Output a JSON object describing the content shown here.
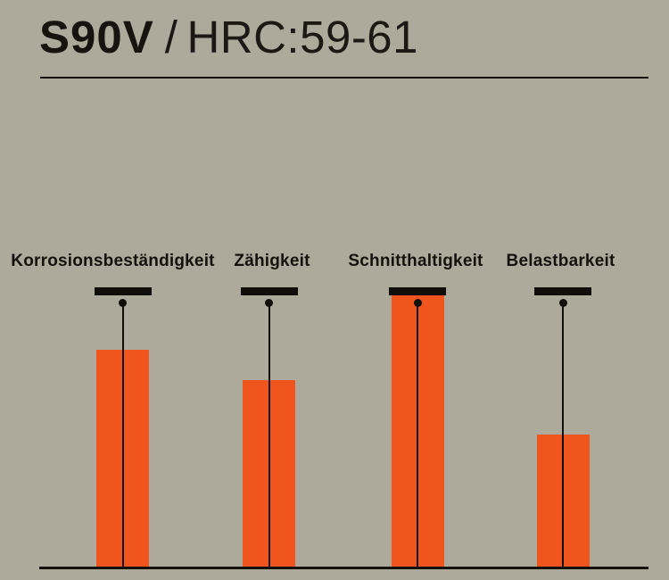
{
  "page": {
    "background_color": "#adaa9c",
    "ink_color": "#15120d",
    "accent_color": "#ef551d"
  },
  "header": {
    "steel_name": "S90V",
    "separator": "/",
    "hardness": "HRC:59-61"
  },
  "chart_data": {
    "type": "bar",
    "title": "S90V / HRC:59-61",
    "categories": [
      "Korrosionsbeständigkeit",
      "Zähigkeit",
      "Schnitthaltigkeit",
      "Belastbarkeit"
    ],
    "values": [
      80,
      69,
      100,
      49
    ],
    "ylim": [
      0,
      100
    ],
    "xlabel": "",
    "ylabel": "",
    "grid": false,
    "legend": "none",
    "bar_color": "#ef551d",
    "marker_style": "black cap at 100% with plumb line and dot from marker to baseline"
  }
}
